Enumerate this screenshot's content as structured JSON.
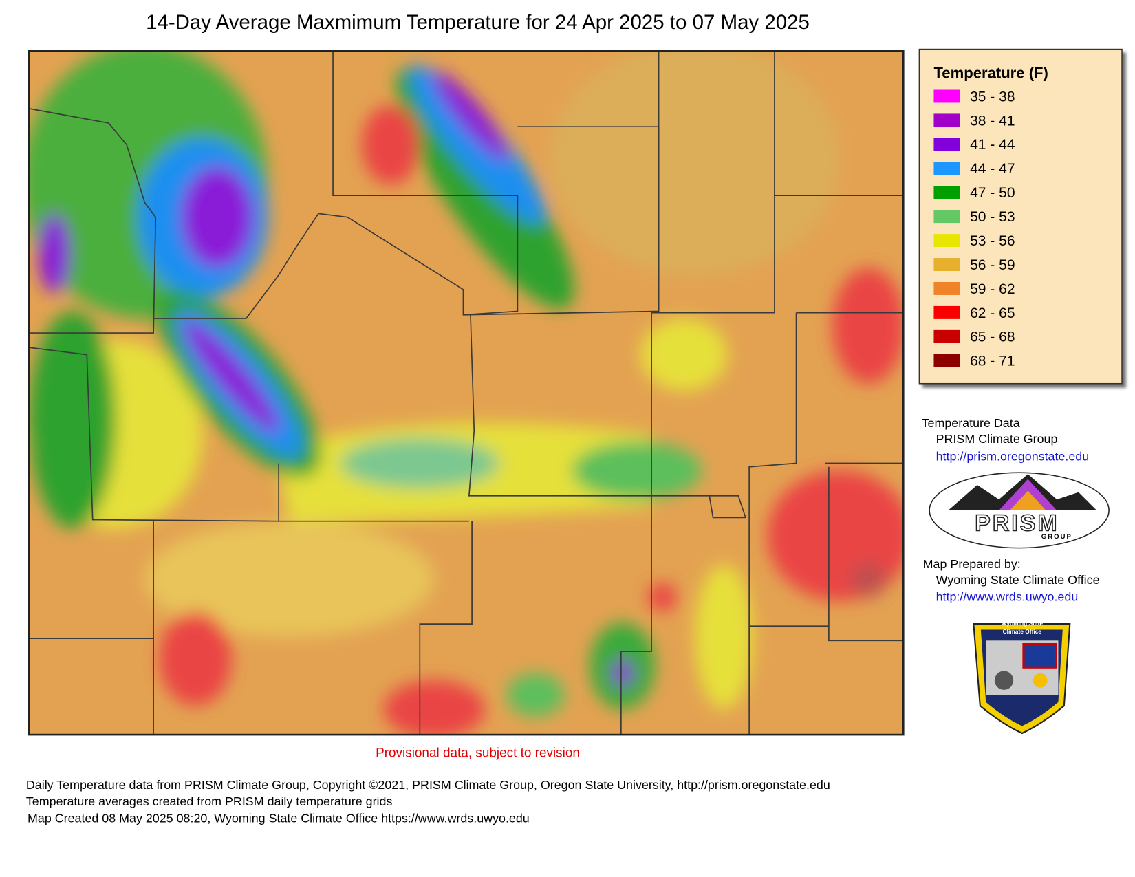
{
  "title": "14-Day Average Maxmimum Temperature for 24 Apr 2025 to 07 May 2025",
  "legend": {
    "title": "Temperature (F)",
    "items": [
      {
        "label": "35 - 38",
        "color": "#ff00ff"
      },
      {
        "label": "38 - 41",
        "color": "#a000c8"
      },
      {
        "label": "41 - 44",
        "color": "#8200dc"
      },
      {
        "label": "44 - 47",
        "color": "#1e96ff"
      },
      {
        "label": "47 - 50",
        "color": "#00a000"
      },
      {
        "label": "50 - 53",
        "color": "#64c864"
      },
      {
        "label": "53 - 56",
        "color": "#e6e600"
      },
      {
        "label": "56 - 59",
        "color": "#e6af2d"
      },
      {
        "label": "59 - 62",
        "color": "#f08228"
      },
      {
        "label": "62 - 65",
        "color": "#fa0000"
      },
      {
        "label": "65 - 68",
        "color": "#c80000"
      },
      {
        "label": "68 - 71",
        "color": "#8c0000"
      }
    ]
  },
  "credits": {
    "data_heading": "Temperature Data",
    "data_source": "PRISM Climate Group",
    "data_url": "http://prism.oregonstate.edu",
    "prepared_heading": "Map Prepared by:",
    "prepared_by": "Wyoming State Climate Office",
    "prepared_url": "http://www.wrds.uwyo.edu"
  },
  "logos": {
    "prism_name": "PRISM",
    "prism_sub": "GROUP",
    "wsco_line1": "Wyoming State",
    "wsco_line2": "Climate Office"
  },
  "note": "Provisional data, subject to revision",
  "footer": [
    "Daily Temperature data from PRISM Climate Group, Copyright ©2021, PRISM Climate Group, Oregon State University, http://prism.oregonstate.edu",
    "Temperature averages created from PRISM daily temperature grids",
    "Map Created 08 May 2025 08:20, Wyoming State Climate Office https://www.wrds.uwyo.edu"
  ]
}
